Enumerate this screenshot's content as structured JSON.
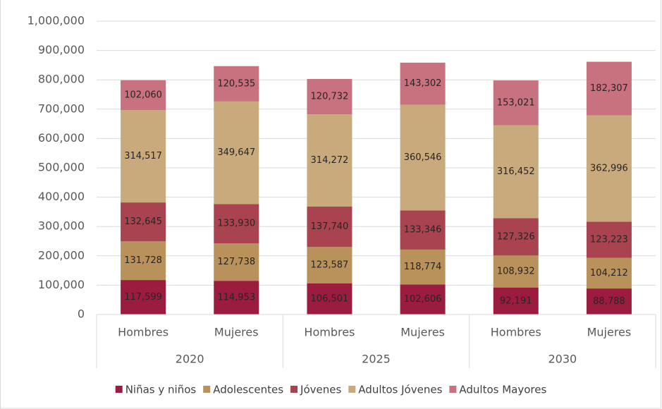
{
  "chart_data": {
    "type": "stacked_bar",
    "categories": [
      "Hombres",
      "Mujeres",
      "Hombres",
      "Mujeres",
      "Hombres",
      "Mujeres"
    ],
    "groups": [
      "2020",
      "2025",
      "2030"
    ],
    "series": [
      {
        "name": "Niñas y niños",
        "color": "#9c1c40",
        "values": [
          117599,
          114953,
          106501,
          102606,
          92191,
          88788
        ],
        "value_labels": [
          "117,599",
          "114,953",
          "106,501",
          "102,606",
          "92,191",
          "88,788"
        ]
      },
      {
        "name": "Adolescentes",
        "color": "#b8915b",
        "values": [
          131728,
          127738,
          123587,
          118774,
          108932,
          104212
        ],
        "value_labels": [
          "131,728",
          "127,738",
          "123,587",
          "118,774",
          "108,932",
          "104,212"
        ]
      },
      {
        "name": "Jóvenes",
        "color": "#a9434f",
        "values": [
          132645,
          133930,
          137740,
          133346,
          127326,
          123223
        ],
        "value_labels": [
          "132,645",
          "133,930",
          "137,740",
          "133,346",
          "127,326",
          "123,223"
        ]
      },
      {
        "name": "Adultos Jóvenes",
        "color": "#c9aa7c",
        "values": [
          314517,
          349647,
          314272,
          360546,
          316452,
          362996
        ],
        "value_labels": [
          "314,517",
          "349,647",
          "314,272",
          "360,546",
          "316,452",
          "362,996"
        ]
      },
      {
        "name": "Adultos Mayores",
        "color": "#c8717f",
        "values": [
          102060,
          120535,
          120732,
          143302,
          153021,
          182307
        ],
        "value_labels": [
          "102,060",
          "120,535",
          "120,732",
          "143,302",
          "153,021",
          "182,307"
        ]
      }
    ],
    "ylim": [
      0,
      1000000
    ],
    "yticks": [
      0,
      {
        "value": 100000,
        "label": "100,000"
      },
      {
        "value": 200000,
        "label": "200,000"
      },
      {
        "value": 300000,
        "label": "300,000"
      },
      {
        "value": 400000,
        "label": "400,000"
      },
      {
        "value": 500000,
        "label": "500,000"
      },
      {
        "value": 600000,
        "label": "600,000"
      },
      {
        "value": 700000,
        "label": "700,000"
      },
      {
        "value": 800000,
        "label": "800,000"
      },
      {
        "value": 900000,
        "label": "900,000"
      },
      {
        "value": 1000000,
        "label": "1,000,000"
      }
    ],
    "grid": true,
    "legend": "bottom"
  }
}
